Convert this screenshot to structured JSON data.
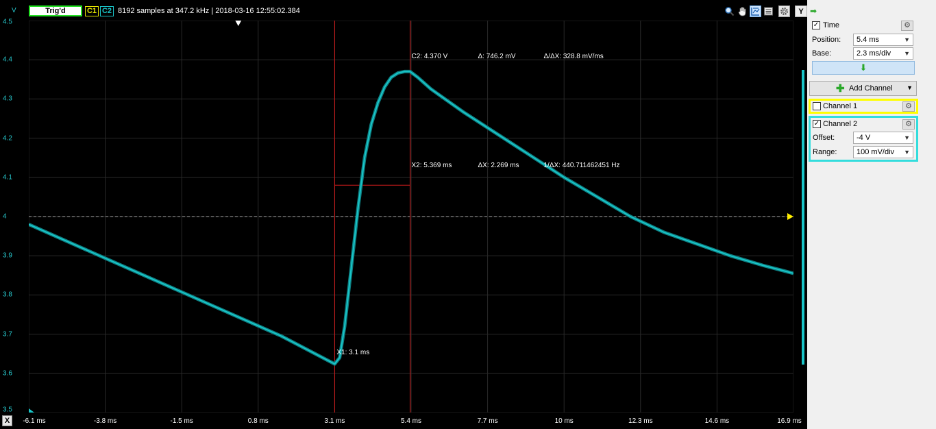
{
  "header": {
    "trig_status": "Trig'd",
    "c1": "C1",
    "c2": "C2",
    "info": "8192 samples at 347.2 kHz | 2018-03-16 12:55:02.384",
    "y_button": "Y",
    "v_label": "V",
    "toolbar_icons": [
      "zoom-icon",
      "hand-icon",
      "cursor-icon",
      "settings-icon",
      "gear-icon"
    ]
  },
  "chart_data": {
    "type": "line",
    "ylabel": "V",
    "ylim": [
      3.5,
      4.5
    ],
    "xlim": [
      -6.1,
      16.9
    ],
    "y_ticks": [
      "4.5",
      "4.4",
      "4.3",
      "4.2",
      "4.1",
      "4",
      "3.9",
      "3.8",
      "3.7",
      "3.6",
      "3.5"
    ],
    "x_ticks": [
      "-6.1 ms",
      "-3.8 ms",
      "-1.5 ms",
      "0.8 ms",
      "3.1 ms",
      "5.4 ms",
      "7.7 ms",
      "10 ms",
      "12.3 ms",
      "14.6 ms",
      "16.9 ms"
    ],
    "series": [
      {
        "name": "Channel 2",
        "color": "#19c5c8",
        "x": [
          -6.1,
          -4.5,
          -2.5,
          -0.5,
          1.5,
          3.1,
          3.25,
          3.4,
          3.6,
          3.8,
          4.0,
          4.2,
          4.4,
          4.6,
          4.8,
          5.0,
          5.2,
          5.369,
          5.6,
          6.0,
          7.0,
          8.0,
          9.0,
          10.0,
          11.0,
          12.0,
          13.0,
          14.0,
          15.0,
          16.0,
          16.9
        ],
        "y": [
          3.98,
          3.92,
          3.845,
          3.77,
          3.695,
          3.624,
          3.64,
          3.72,
          3.87,
          4.02,
          4.15,
          4.235,
          4.29,
          4.33,
          4.355,
          4.366,
          4.37,
          4.37,
          4.355,
          4.325,
          4.265,
          4.21,
          4.155,
          4.1,
          4.05,
          4.0,
          3.96,
          3.93,
          3.9,
          3.875,
          3.855
        ]
      }
    ],
    "cursors": {
      "x1_ms": 3.1,
      "x2_ms": 5.369,
      "level_v": 4.08,
      "dashed_level_v": 4.0
    },
    "annotations": {
      "x1": "X1: 3.1 ms",
      "c2": "C2: 4.370 V",
      "delta": "Δ: 746.2 mV",
      "slope": "Δ/ΔX: 328.8 mV/ms",
      "x2": "X2: 5.369 ms",
      "delta_x": "ΔX: 2.269 ms",
      "freq": "1/ΔX: 440.711462451 Hz"
    },
    "grid": true
  },
  "xaxis": {
    "button": "X"
  },
  "sidebar": {
    "time": {
      "label": "Time",
      "checked": "✓",
      "position_label": "Position:",
      "position_value": "5.4 ms",
      "base_label": "Base:",
      "base_value": "2.3 ms/div"
    },
    "add_channel": "Add Channel",
    "channel1": {
      "label": "Channel 1",
      "checked": "",
      "border": "#ffff00"
    },
    "channel2": {
      "label": "Channel 2",
      "checked": "✓",
      "border": "#33dddd",
      "offset_label": "Offset:",
      "offset_value": "-4 V",
      "range_label": "Range:",
      "range_value": "100 mV/div"
    }
  }
}
